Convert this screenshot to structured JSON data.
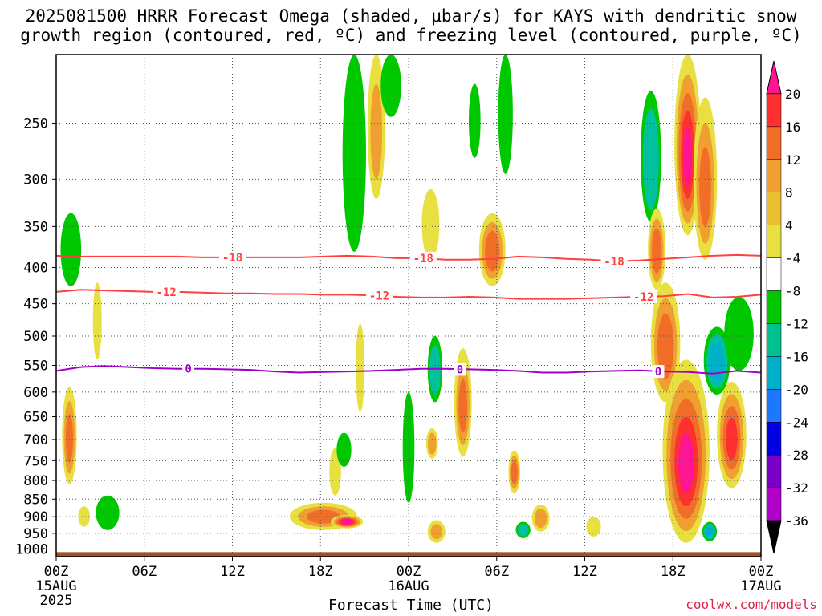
{
  "title": {
    "line1": "2025081500 HRRR Forecast Omega (shaded, μbar/s) for KAYS with dendritic snow",
    "line2": "growth region (contoured, red, ºC) and freezing level (contoured, purple, ºC)"
  },
  "footer": {
    "xlabel": "Forecast Time (UTC)",
    "credit": "coolwx.com/models"
  },
  "chart_data": {
    "type": "heatmap",
    "xlabel": "Forecast Time (UTC)",
    "ylabel": "",
    "x_range_hours": [
      0,
      48
    ],
    "y_range_mb": [
      200,
      1025
    ],
    "y_scale": "log-pressure",
    "grid": true,
    "x_ticks": [
      {
        "h": 0,
        "l1": "00Z",
        "l2": "15AUG",
        "l3": "2025"
      },
      {
        "h": 6,
        "l1": "06Z",
        "l2": "",
        "l3": ""
      },
      {
        "h": 12,
        "l1": "12Z",
        "l2": "",
        "l3": ""
      },
      {
        "h": 18,
        "l1": "18Z",
        "l2": "",
        "l3": ""
      },
      {
        "h": 24,
        "l1": "00Z",
        "l2": "16AUG",
        "l3": ""
      },
      {
        "h": 30,
        "l1": "06Z",
        "l2": "",
        "l3": ""
      },
      {
        "h": 36,
        "l1": "12Z",
        "l2": "",
        "l3": ""
      },
      {
        "h": 42,
        "l1": "18Z",
        "l2": "",
        "l3": ""
      },
      {
        "h": 48,
        "l1": "00Z",
        "l2": "17AUG",
        "l3": ""
      }
    ],
    "y_ticks": [
      250,
      300,
      350,
      400,
      450,
      500,
      550,
      600,
      650,
      700,
      750,
      800,
      850,
      900,
      950,
      1000
    ],
    "colorbar": {
      "labels": [
        "20",
        "16",
        "12",
        "8",
        "4",
        "-4",
        "-8",
        "-12",
        "-16",
        "-20",
        "-24",
        "-28",
        "-32",
        "-36"
      ],
      "colors": [
        "#ff1493",
        "#ff3030",
        "#f06e28",
        "#f0a030",
        "#e8c030",
        "#e8e040",
        "#ffffff",
        "#00c800",
        "#00c090",
        "#00b0c8",
        "#1e78ff",
        "#0000e0",
        "#7a00c8",
        "#b000c8",
        "#a0a0a0"
      ]
    },
    "isotherms": [
      {
        "label": "-18",
        "color": "#ff4040",
        "p": [
          385,
          386,
          386,
          386,
          386,
          386,
          387,
          387,
          387,
          387,
          387,
          386,
          385,
          386,
          388,
          388,
          390,
          390,
          389,
          386,
          387,
          389,
          390,
          392,
          391,
          389,
          387,
          385,
          384,
          385
        ]
      },
      {
        "label": "-12",
        "color": "#ff4040",
        "p": [
          433,
          430,
          431,
          432,
          433,
          433,
          434,
          435,
          435,
          436,
          436,
          437,
          437,
          438,
          440,
          441,
          441,
          440,
          441,
          443,
          443,
          443,
          442,
          441,
          440,
          439,
          436,
          441,
          440,
          437
        ]
      },
      {
        "label": "0",
        "color": "#a000c8",
        "p": [
          560,
          553,
          551,
          553,
          555,
          556,
          556,
          557,
          558,
          561,
          563,
          562,
          561,
          560,
          558,
          556,
          556,
          557,
          558,
          560,
          563,
          563,
          561,
          560,
          559,
          561,
          562,
          565,
          560,
          563
        ]
      }
    ],
    "isotherm_labels": [
      {
        "label": "-18",
        "h": 12.0
      },
      {
        "label": "-18",
        "h": 25.0
      },
      {
        "label": "-18",
        "h": 38.0
      },
      {
        "label": "-12",
        "h": 7.5
      },
      {
        "label": "-12",
        "h": 22.0
      },
      {
        "label": "-12",
        "h": 40.0
      },
      {
        "label": "0",
        "h": 9.0
      },
      {
        "label": "0",
        "h": 27.5
      },
      {
        "label": "0",
        "h": 41.0
      }
    ],
    "omega_blobs": [
      {
        "h": 0.9,
        "p": 700,
        "dh": 0.5,
        "dp": 110,
        "v": 12
      },
      {
        "h": 1.0,
        "p": 380,
        "dh": 0.7,
        "dp": 45,
        "v": -8
      },
      {
        "h": 1.9,
        "p": 900,
        "dh": 0.4,
        "dp": 30,
        "v": 6
      },
      {
        "h": 2.8,
        "p": 480,
        "dh": 0.3,
        "dp": 60,
        "v": 5
      },
      {
        "h": 3.5,
        "p": 890,
        "dh": 0.8,
        "dp": 50,
        "v": -8
      },
      {
        "h": 18.2,
        "p": 900,
        "dh": 2.3,
        "dp": 40,
        "v": 12
      },
      {
        "h": 19.8,
        "p": 915,
        "dh": 1.1,
        "dp": 20,
        "v": 20
      },
      {
        "h": 19.0,
        "p": 780,
        "dh": 0.4,
        "dp": 60,
        "v": 6
      },
      {
        "h": 20.7,
        "p": 560,
        "dh": 0.3,
        "dp": 80,
        "v": 6
      },
      {
        "h": 19.6,
        "p": 725,
        "dh": 0.5,
        "dp": 40,
        "v": -8
      },
      {
        "h": 20.3,
        "p": 290,
        "dh": 0.8,
        "dp": 90,
        "v": -8
      },
      {
        "h": 21.8,
        "p": 260,
        "dh": 0.6,
        "dp": 60,
        "v": 8
      },
      {
        "h": 22.8,
        "p": 215,
        "dh": 0.7,
        "dp": 30,
        "v": -8
      },
      {
        "h": 24.0,
        "p": 730,
        "dh": 0.4,
        "dp": 130,
        "v": -8
      },
      {
        "h": 25.8,
        "p": 560,
        "dh": 0.5,
        "dp": 60,
        "v": -12
      },
      {
        "h": 25.6,
        "p": 710,
        "dh": 0.4,
        "dp": 35,
        "v": 10
      },
      {
        "h": 25.9,
        "p": 945,
        "dh": 0.6,
        "dp": 35,
        "v": 8
      },
      {
        "h": 25.5,
        "p": 350,
        "dh": 0.6,
        "dp": 40,
        "v": 6
      },
      {
        "h": 27.7,
        "p": 630,
        "dh": 0.6,
        "dp": 110,
        "v": 12
      },
      {
        "h": 28.5,
        "p": 250,
        "dh": 0.4,
        "dp": 30,
        "v": -8
      },
      {
        "h": 29.7,
        "p": 380,
        "dh": 0.9,
        "dp": 45,
        "v": 14
      },
      {
        "h": 30.6,
        "p": 245,
        "dh": 0.5,
        "dp": 50,
        "v": -10
      },
      {
        "h": 31.2,
        "p": 780,
        "dh": 0.4,
        "dp": 55,
        "v": 14
      },
      {
        "h": 31.8,
        "p": 940,
        "dh": 0.5,
        "dp": 25,
        "v": -12
      },
      {
        "h": 33.0,
        "p": 905,
        "dh": 0.6,
        "dp": 40,
        "v": 10
      },
      {
        "h": 36.6,
        "p": 930,
        "dh": 0.5,
        "dp": 30,
        "v": 6
      },
      {
        "h": 40.5,
        "p": 285,
        "dh": 0.7,
        "dp": 60,
        "v": -14
      },
      {
        "h": 40.9,
        "p": 380,
        "dh": 0.6,
        "dp": 50,
        "v": 14
      },
      {
        "h": 41.5,
        "p": 520,
        "dh": 1.0,
        "dp": 100,
        "v": 14
      },
      {
        "h": 42.9,
        "p": 760,
        "dh": 1.6,
        "dp": 220,
        "v": 20
      },
      {
        "h": 43.0,
        "p": 280,
        "dh": 0.9,
        "dp": 80,
        "v": 20
      },
      {
        "h": 44.2,
        "p": 310,
        "dh": 0.8,
        "dp": 80,
        "v": 12
      },
      {
        "h": 45.0,
        "p": 545,
        "dh": 0.9,
        "dp": 60,
        "v": -16
      },
      {
        "h": 46.5,
        "p": 500,
        "dh": 1.0,
        "dp": 60,
        "v": -10
      },
      {
        "h": 44.5,
        "p": 945,
        "dh": 0.5,
        "dp": 30,
        "v": -16
      },
      {
        "h": 46.0,
        "p": 700,
        "dh": 1.0,
        "dp": 120,
        "v": 16
      }
    ]
  }
}
